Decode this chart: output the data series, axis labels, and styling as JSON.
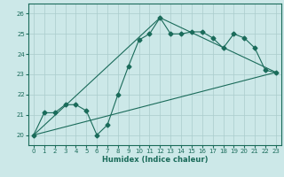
{
  "title": "",
  "xlabel": "Humidex (Indice chaleur)",
  "bg_color": "#cce8e8",
  "grid_color": "#aacccc",
  "line_color": "#1a6b5a",
  "xlim": [
    -0.5,
    23.5
  ],
  "ylim": [
    19.5,
    26.5
  ],
  "yticks": [
    20,
    21,
    22,
    23,
    24,
    25,
    26
  ],
  "xticks": [
    0,
    1,
    2,
    3,
    4,
    5,
    6,
    7,
    8,
    9,
    10,
    11,
    12,
    13,
    14,
    15,
    16,
    17,
    18,
    19,
    20,
    21,
    22,
    23
  ],
  "line1_x": [
    0,
    1,
    2,
    3,
    4,
    5,
    6,
    7,
    8,
    9,
    10,
    11,
    12,
    13,
    14,
    15,
    16,
    17,
    18,
    19,
    20,
    21,
    22,
    23
  ],
  "line1_y": [
    20.0,
    21.1,
    21.1,
    21.5,
    21.5,
    21.2,
    20.0,
    20.5,
    22.0,
    23.4,
    24.7,
    25.0,
    25.8,
    25.0,
    25.0,
    25.1,
    25.1,
    24.8,
    24.3,
    25.0,
    24.8,
    24.3,
    23.2,
    23.1
  ],
  "line2_x": [
    0,
    23
  ],
  "line2_y": [
    20.0,
    23.1
  ],
  "line3_x": [
    0,
    12,
    23
  ],
  "line3_y": [
    20.0,
    25.8,
    23.1
  ],
  "marker_size": 2.5,
  "line_width": 0.8,
  "tick_fontsize": 5.0,
  "xlabel_fontsize": 6.0
}
